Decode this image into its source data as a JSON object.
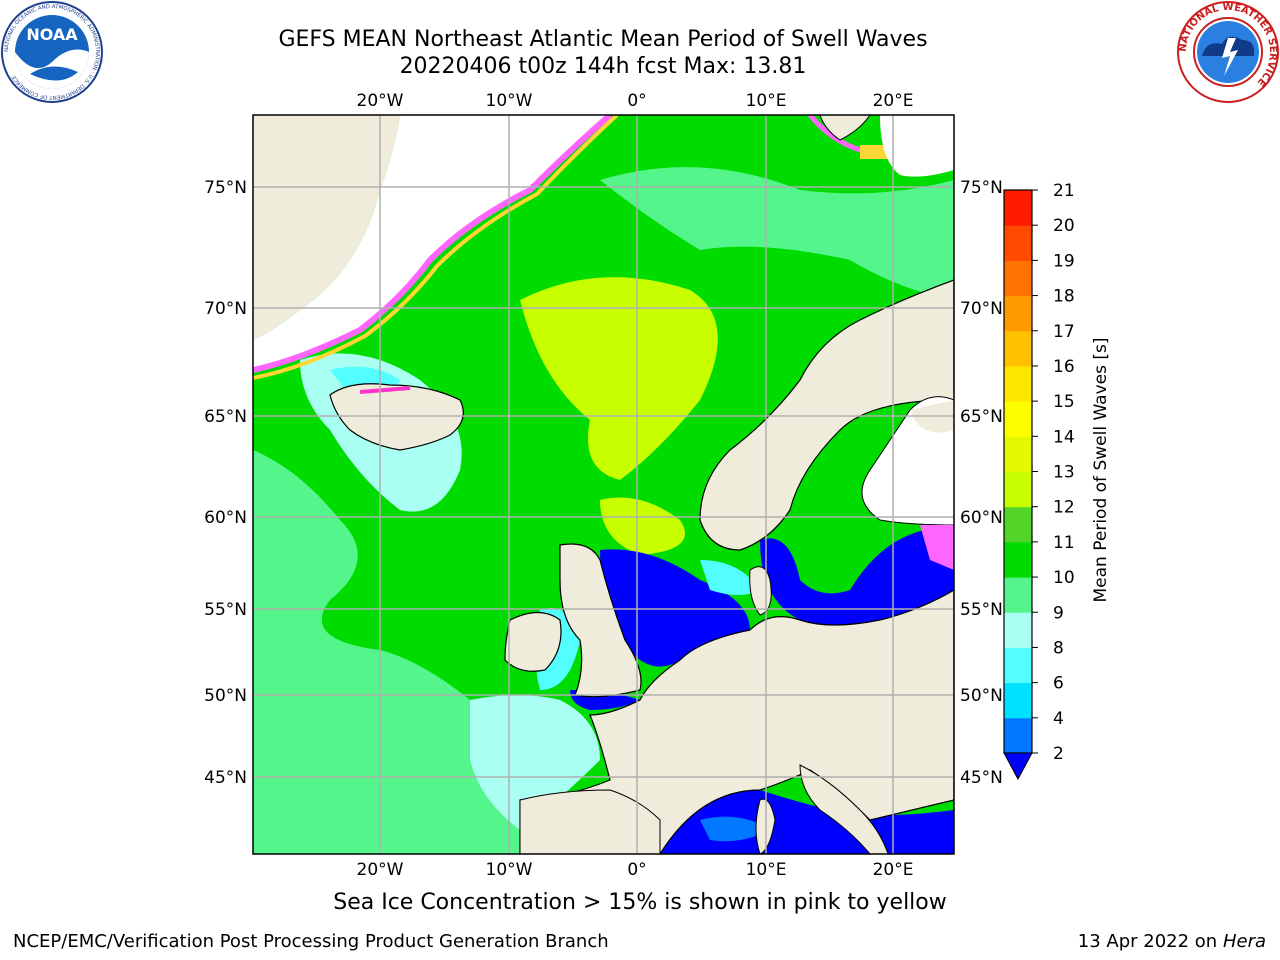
{
  "header": {
    "title": "GEFS MEAN Northeast Atlantic Mean Period of Swell Waves",
    "subtitle": "20220406 t00z 144h fcst   Max: 13.81"
  },
  "logos": {
    "noaa_text": "NOAA",
    "noaa_ring": "NATIONAL OCEANIC AND ATMOSPHERIC ADMINISTRATION · U.S. DEPARTMENT OF COMMERCE",
    "nws_ring": "NATIONAL WEATHER SERVICE"
  },
  "map": {
    "lon_ticks": [
      "20°W",
      "10°W",
      "0°",
      "10°E",
      "20°E"
    ],
    "lat_ticks": [
      "75°N",
      "70°N",
      "65°N",
      "60°N",
      "55°N",
      "50°N",
      "45°N"
    ],
    "colors": {
      "land": "#efecdb",
      "ice_white": "#ffffff",
      "grid": "#b0b0b0",
      "coast": "#000000"
    }
  },
  "colorbar": {
    "label": "Mean Period of Swell Waves [s]",
    "ticks": [
      "2",
      "4",
      "6",
      "8",
      "9",
      "10",
      "11",
      "12",
      "13",
      "14",
      "15",
      "16",
      "17",
      "18",
      "19",
      "20",
      "21"
    ],
    "levels": [
      2,
      4,
      6,
      8,
      9,
      10,
      11,
      12,
      13,
      14,
      15,
      16,
      17,
      18,
      19,
      20,
      21
    ],
    "colors": [
      "#0078ff",
      "#00e1ff",
      "#52fffe",
      "#a9fff1",
      "#54f58a",
      "#00dc00",
      "#52d528",
      "#c8ff00",
      "#e3f900",
      "#ffff00",
      "#ffe600",
      "#ffc000",
      "#ff9900",
      "#ff7300",
      "#ff4a00",
      "#ff1a00"
    ],
    "under_color": "#0000ff"
  },
  "note": "Sea Ice Concentration > 15% is shown in pink to yellow",
  "footer": {
    "left": "NCEP/EMC/Verification Post Processing Product Generation Branch",
    "right_date": "13 Apr 2022 on",
    "right_host": "Hera"
  }
}
